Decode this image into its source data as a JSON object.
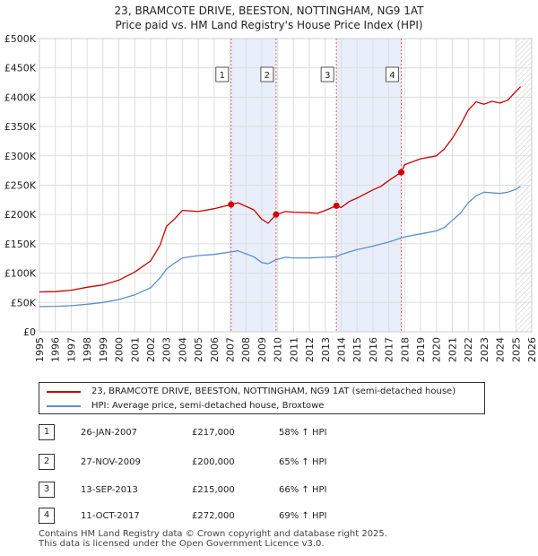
{
  "title_line1": "23, BRAMCOTE DRIVE, BEESTON, NOTTINGHAM, NG9 1AT",
  "title_line2": "Price paid vs. HM Land Registry's House Price Index (HPI)",
  "chart_data": {
    "type": "line",
    "xlim": [
      1995,
      2026
    ],
    "ylim": [
      0,
      500000
    ],
    "y_ticks": [
      {
        "value": 0,
        "label": "£0"
      },
      {
        "value": 50000,
        "label": "£50K"
      },
      {
        "value": 100000,
        "label": "£100K"
      },
      {
        "value": 150000,
        "label": "£150K"
      },
      {
        "value": 200000,
        "label": "£200K"
      },
      {
        "value": 250000,
        "label": "£250K"
      },
      {
        "value": 300000,
        "label": "£300K"
      },
      {
        "value": 350000,
        "label": "£350K"
      },
      {
        "value": 400000,
        "label": "£400K"
      },
      {
        "value": 450000,
        "label": "£450K"
      },
      {
        "value": 500000,
        "label": "£500K"
      }
    ],
    "x_ticks": [
      "1995",
      "1996",
      "1997",
      "1998",
      "1999",
      "2000",
      "2001",
      "2002",
      "2003",
      "2004",
      "2005",
      "2006",
      "2007",
      "2008",
      "2009",
      "2010",
      "2011",
      "2012",
      "2013",
      "2014",
      "2015",
      "2016",
      "2017",
      "2018",
      "2019",
      "2020",
      "2021",
      "2022",
      "2023",
      "2024",
      "2025",
      "2026"
    ],
    "grid": true,
    "series": [
      {
        "name": "23, BRAMCOTE DRIVE, BEESTON, NOTTINGHAM, NG9 1AT (semi-detached house)",
        "color": "#cc0000",
        "x": [
          1995,
          1996,
          1997,
          1998,
          1999,
          2000,
          2001,
          2002,
          2002.6,
          2003,
          2003.5,
          2004,
          2005,
          2006,
          2007.07,
          2007.5,
          2008,
          2008.5,
          2009,
          2009.4,
          2009.9,
          2010.5,
          2011,
          2012,
          2012.5,
          2013,
          2013.7,
          2014,
          2014.5,
          2015,
          2016,
          2016.5,
          2017,
          2017.78,
          2018,
          2019,
          2020,
          2020.5,
          2021,
          2021.5,
          2022,
          2022.5,
          2023,
          2023.5,
          2024,
          2024.5,
          2025,
          2025.3
        ],
        "y": [
          68000,
          68500,
          71000,
          76000,
          80000,
          88000,
          102000,
          121000,
          148000,
          180000,
          192000,
          207000,
          205000,
          210000,
          217000,
          220000,
          214000,
          208000,
          192000,
          185000,
          200000,
          205000,
          204000,
          203000,
          202000,
          207000,
          215000,
          212000,
          222000,
          228000,
          242000,
          248000,
          258000,
          272000,
          285000,
          295000,
          300000,
          312000,
          330000,
          352000,
          378000,
          392000,
          388000,
          393000,
          390000,
          395000,
          410000,
          418000
        ]
      },
      {
        "name": "HPI: Average price, semi-detached house, Broxtowe",
        "color": "#5b8fce",
        "x": [
          1995,
          1996,
          1997,
          1998,
          1999,
          2000,
          2001,
          2002,
          2002.6,
          2003,
          2003.5,
          2004,
          2005,
          2006,
          2007,
          2007.5,
          2008,
          2008.5,
          2009,
          2009.4,
          2009.9,
          2010.5,
          2011,
          2012,
          2013,
          2013.7,
          2014,
          2015,
          2016,
          2017,
          2018,
          2019,
          2020,
          2020.5,
          2021,
          2021.5,
          2022,
          2022.5,
          2023,
          2024,
          2024.5,
          2025,
          2025.3
        ],
        "y": [
          43000,
          43500,
          44500,
          47000,
          50000,
          55000,
          63000,
          75000,
          92000,
          107000,
          117000,
          126000,
          130000,
          132000,
          136000,
          138000,
          133000,
          128000,
          118000,
          116000,
          123000,
          127000,
          126000,
          126000,
          127000,
          128000,
          132000,
          140000,
          146000,
          153000,
          162000,
          167000,
          172000,
          178000,
          190000,
          202000,
          220000,
          232000,
          238000,
          236000,
          238000,
          243000,
          248000
        ]
      }
    ],
    "sales": [
      {
        "id": "1",
        "x": 2007.07,
        "price": 217000
      },
      {
        "id": "2",
        "x": 2009.9,
        "price": 200000
      },
      {
        "id": "3",
        "x": 2013.7,
        "price": 215000
      },
      {
        "id": "4",
        "x": 2017.78,
        "price": 272000
      }
    ],
    "shaded_ranges": [
      [
        2007.07,
        2009.9
      ],
      [
        2013.7,
        2017.78
      ]
    ],
    "future_hatch_from": 2025.0
  },
  "legend": {
    "red_label": "23, BRAMCOTE DRIVE, BEESTON, NOTTINGHAM, NG9 1AT (semi-detached house)",
    "blue_label": "HPI: Average price, semi-detached house, Broxtowe",
    "red_color": "#cc0000",
    "blue_color": "#5b8fce"
  },
  "transactions": [
    {
      "id": "1",
      "date": "26-JAN-2007",
      "price": "£217,000",
      "hpi": "58% ↑ HPI"
    },
    {
      "id": "2",
      "date": "27-NOV-2009",
      "price": "£200,000",
      "hpi": "65% ↑ HPI"
    },
    {
      "id": "3",
      "date": "13-SEP-2013",
      "price": "£215,000",
      "hpi": "66% ↑ HPI"
    },
    {
      "id": "4",
      "date": "11-OCT-2017",
      "price": "£272,000",
      "hpi": "69% ↑ HPI"
    }
  ],
  "footer_line1": "Contains HM Land Registry data © Crown copyright and database right 2025.",
  "footer_line2": "This data is licensed under the Open Government Licence v3.0."
}
